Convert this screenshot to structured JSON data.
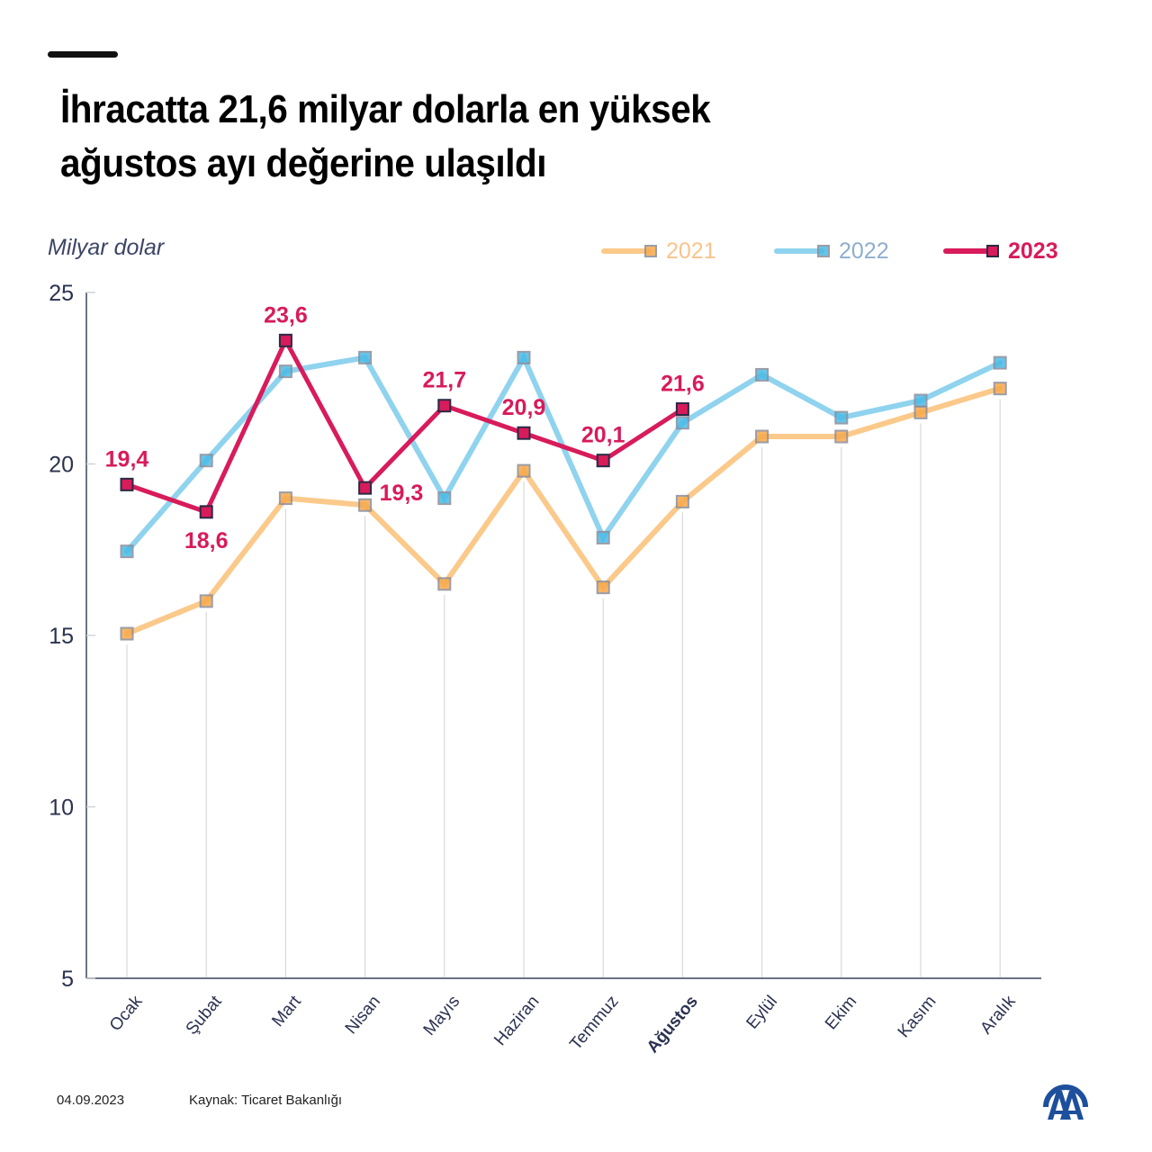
{
  "header": {
    "title_line1": "İhracatta 21,6 milyar dolarla en yüksek",
    "title_line2": "ağustos ayı değerine ulaşıldı",
    "unit_label": "Milyar dolar"
  },
  "legend": [
    {
      "label": "2021",
      "color": "#fbc98a",
      "text_color": "#f9c48a"
    },
    {
      "label": "2022",
      "color": "#8fd3ee",
      "text_color": "#8faecd"
    },
    {
      "label": "2023",
      "color": "#d81b5a",
      "text_color": "#d81b5a"
    }
  ],
  "footer": {
    "date": "04.09.2023",
    "source": "Kaynak: Ticaret Bakanlığı",
    "logo": "AA"
  },
  "colors": {
    "s2021": "#fbc98a",
    "s2022": "#8fd3ee",
    "s2023": "#d81b5a",
    "axis": "#6b7285",
    "grid": "#d9d9dc",
    "tick_text": "#2b3150",
    "brand_blue": "#1d4f9c"
  },
  "chart_data": {
    "type": "line",
    "title": "İhracatta 21,6 milyar dolarla en yüksek ağustos ayı değerine ulaşıldı",
    "xlabel": "",
    "ylabel": "Milyar dolar",
    "ylim": [
      5,
      25
    ],
    "yticks": [
      "5",
      "10",
      "15",
      "20",
      "25"
    ],
    "ytick_values": [
      5,
      10,
      15,
      20,
      25
    ],
    "categories": [
      "Ocak",
      "Şubat",
      "Mart",
      "Nisan",
      "Mayıs",
      "Haziran",
      "Temmuz",
      "Ağustos",
      "Eylül",
      "Ekim",
      "Kasım",
      "Aralık"
    ],
    "highlight_category": "Ağustos",
    "legend_position": "top-right",
    "grid": "vertical lines at categories",
    "series": [
      {
        "name": "2021",
        "values": [
          15.05,
          16.0,
          19.0,
          18.8,
          16.5,
          19.8,
          16.4,
          18.9,
          20.8,
          20.8,
          21.5,
          22.2
        ],
        "labels": null
      },
      {
        "name": "2022",
        "values": [
          17.45,
          20.1,
          22.7,
          23.1,
          19.0,
          23.1,
          17.85,
          21.2,
          22.6,
          21.35,
          21.85,
          22.95
        ],
        "labels": null
      },
      {
        "name": "2023",
        "values": [
          19.4,
          18.6,
          23.6,
          19.3,
          21.7,
          20.9,
          20.1,
          21.6
        ],
        "labels": [
          "19,4",
          "18,6",
          "23,6",
          "19,3",
          "21,7",
          "20,9",
          "20,1",
          "21,6"
        ],
        "label_positions": [
          "above",
          "below",
          "above",
          "right",
          "above",
          "above",
          "above",
          "above"
        ]
      }
    ]
  }
}
